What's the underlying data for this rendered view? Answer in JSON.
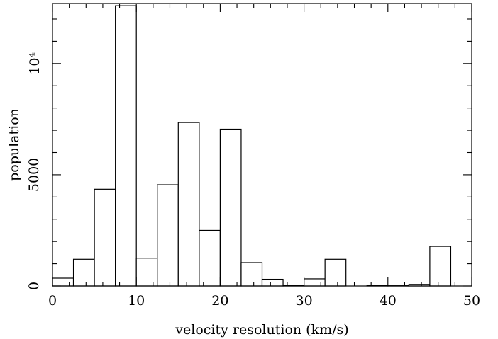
{
  "chart_data": {
    "type": "bar",
    "xlabel": "velocity resolution (km/s)",
    "ylabel": "population",
    "xlim": [
      0,
      50
    ],
    "ylim": [
      0,
      12700
    ],
    "x_ticks": [
      "0",
      "10",
      "20",
      "30",
      "40",
      "50"
    ],
    "y_ticks": [
      "0",
      "5000",
      "10⁴"
    ],
    "bins": [
      {
        "x0": 0,
        "x1": 2.5,
        "value": 350
      },
      {
        "x0": 2.5,
        "x1": 5,
        "value": 1200
      },
      {
        "x0": 5,
        "x1": 7.5,
        "value": 4350
      },
      {
        "x0": 7.5,
        "x1": 10,
        "value": 12600
      },
      {
        "x0": 10,
        "x1": 12.5,
        "value": 1250
      },
      {
        "x0": 12.5,
        "x1": 15,
        "value": 4550
      },
      {
        "x0": 15,
        "x1": 17.5,
        "value": 7350
      },
      {
        "x0": 17.5,
        "x1": 20,
        "value": 2500
      },
      {
        "x0": 20,
        "x1": 22.5,
        "value": 7050
      },
      {
        "x0": 22.5,
        "x1": 25,
        "value": 1050
      },
      {
        "x0": 25,
        "x1": 27.5,
        "value": 300
      },
      {
        "x0": 27.5,
        "x1": 30,
        "value": 30
      },
      {
        "x0": 30,
        "x1": 32.5,
        "value": 320
      },
      {
        "x0": 32.5,
        "x1": 35,
        "value": 1200
      },
      {
        "x0": 35,
        "x1": 37.5,
        "value": 0
      },
      {
        "x0": 37.5,
        "x1": 40,
        "value": 20
      },
      {
        "x0": 40,
        "x1": 42.5,
        "value": 40
      },
      {
        "x0": 42.5,
        "x1": 45,
        "value": 70
      },
      {
        "x0": 45,
        "x1": 47.5,
        "value": 1780
      },
      {
        "x0": 47.5,
        "x1": 50,
        "value": 0
      }
    ],
    "grid": false,
    "colors": {
      "bar_fill": "#ffffff",
      "bar_stroke": "#000000"
    }
  }
}
